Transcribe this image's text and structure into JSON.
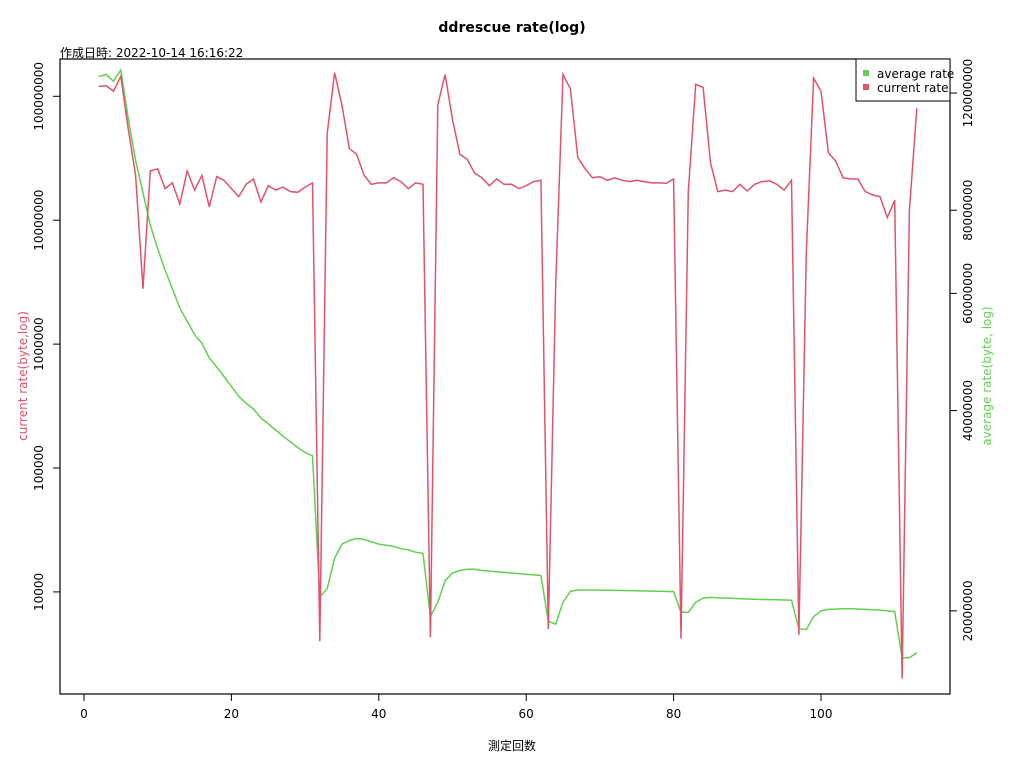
{
  "chart_data": {
    "type": "line",
    "title": "ddrescue rate(log)",
    "subtitle": "作成日時: 2022-10-14 16:16:22",
    "xlabel": "測定回数",
    "ylabel_left": "current rate(byte,log)",
    "ylabel_right": "average rate(byte, log)",
    "colors": {
      "current": "#DF536B",
      "average": "#61D04F"
    },
    "legend_position": "top-right",
    "grid": false,
    "xlim": [
      0,
      113
    ],
    "x_ticks": [
      0,
      20,
      40,
      60,
      80,
      100
    ],
    "y_left_log_range": [
      1500,
      200000000
    ],
    "y_left_ticks": [
      10000,
      100000,
      1000000,
      10000000,
      100000000
    ],
    "y_right_log_range": [
      15000000,
      135000000
    ],
    "y_right_ticks": [
      20000000,
      40000000,
      60000000,
      80000000,
      120000000
    ],
    "series": [
      {
        "name": "average rate",
        "axis": "right",
        "points": [
          [
            2,
            127000000
          ],
          [
            3,
            128000000
          ],
          [
            4,
            125000000
          ],
          [
            5,
            130000000
          ],
          [
            6,
            110000000
          ],
          [
            7,
            95000000
          ],
          [
            8,
            85000000
          ],
          [
            9,
            76000000
          ],
          [
            10,
            70000000
          ],
          [
            11,
            65000000
          ],
          [
            12,
            61000000
          ],
          [
            13,
            57000000
          ],
          [
            14,
            54500000
          ],
          [
            15,
            52000000
          ],
          [
            16,
            50500000
          ],
          [
            17,
            48000000
          ],
          [
            18,
            46500000
          ],
          [
            19,
            45000000
          ],
          [
            20,
            43500000
          ],
          [
            21,
            42000000
          ],
          [
            22,
            41000000
          ],
          [
            23,
            40200000
          ],
          [
            24,
            39000000
          ],
          [
            25,
            38200000
          ],
          [
            26,
            37400000
          ],
          [
            27,
            36600000
          ],
          [
            28,
            35900000
          ],
          [
            29,
            35200000
          ],
          [
            30,
            34600000
          ],
          [
            31,
            34200000
          ],
          [
            32,
            21000000
          ],
          [
            33,
            21600000
          ],
          [
            34,
            24000000
          ],
          [
            35,
            25200000
          ],
          [
            36,
            25500000
          ],
          [
            37,
            25700000
          ],
          [
            38,
            25600000
          ],
          [
            39,
            25400000
          ],
          [
            40,
            25200000
          ],
          [
            41,
            25100000
          ],
          [
            42,
            25000000
          ],
          [
            43,
            24800000
          ],
          [
            44,
            24700000
          ],
          [
            45,
            24500000
          ],
          [
            46,
            24400000
          ],
          [
            47,
            19600000
          ],
          [
            48,
            20600000
          ],
          [
            49,
            22200000
          ],
          [
            50,
            22800000
          ],
          [
            51,
            23000000
          ],
          [
            52,
            23100000
          ],
          [
            53,
            23100000
          ],
          [
            54,
            23000000
          ],
          [
            55,
            22950000
          ],
          [
            56,
            22900000
          ],
          [
            57,
            22850000
          ],
          [
            58,
            22800000
          ],
          [
            59,
            22750000
          ],
          [
            60,
            22700000
          ],
          [
            61,
            22650000
          ],
          [
            62,
            22600000
          ],
          [
            63,
            19300000
          ],
          [
            64,
            19100000
          ],
          [
            65,
            20600000
          ],
          [
            66,
            21400000
          ],
          [
            67,
            21500000
          ],
          [
            68,
            21500000
          ],
          [
            69,
            21500000
          ],
          [
            70,
            21490000
          ],
          [
            72,
            21470000
          ],
          [
            74,
            21450000
          ],
          [
            76,
            21420000
          ],
          [
            78,
            21400000
          ],
          [
            80,
            21380000
          ],
          [
            81,
            19900000
          ],
          [
            82,
            19900000
          ],
          [
            83,
            20600000
          ],
          [
            84,
            20900000
          ],
          [
            85,
            20950000
          ],
          [
            86,
            20920000
          ],
          [
            88,
            20880000
          ],
          [
            90,
            20840000
          ],
          [
            92,
            20800000
          ],
          [
            94,
            20780000
          ],
          [
            96,
            20750000
          ],
          [
            97,
            18800000
          ],
          [
            98,
            18750000
          ],
          [
            99,
            19600000
          ],
          [
            100,
            20000000
          ],
          [
            101,
            20100000
          ],
          [
            102,
            20120000
          ],
          [
            103,
            20140000
          ],
          [
            104,
            20150000
          ],
          [
            105,
            20130000
          ],
          [
            106,
            20100000
          ],
          [
            108,
            20050000
          ],
          [
            110,
            19950000
          ],
          [
            111,
            17000000
          ],
          [
            112,
            17000000
          ],
          [
            113,
            17300000
          ]
        ]
      },
      {
        "name": "current rate",
        "axis": "left",
        "points": [
          [
            2,
            120000000
          ],
          [
            3,
            122000000
          ],
          [
            4,
            110000000
          ],
          [
            5,
            145000000
          ],
          [
            6,
            55000000
          ],
          [
            7,
            23000000
          ],
          [
            8,
            2800000
          ],
          [
            9,
            25000000
          ],
          [
            10,
            26000000
          ],
          [
            11,
            18000000
          ],
          [
            12,
            20000000
          ],
          [
            13,
            13500000
          ],
          [
            14,
            25000000
          ],
          [
            15,
            17500000
          ],
          [
            16,
            23000000
          ],
          [
            17,
            12800000
          ],
          [
            18,
            22500000
          ],
          [
            19,
            21000000
          ],
          [
            20,
            18000000
          ],
          [
            21,
            15500000
          ],
          [
            22,
            19500000
          ],
          [
            23,
            21500000
          ],
          [
            24,
            14000000
          ],
          [
            25,
            19000000
          ],
          [
            26,
            17500000
          ],
          [
            27,
            18500000
          ],
          [
            28,
            17000000
          ],
          [
            29,
            16800000
          ],
          [
            30,
            18500000
          ],
          [
            31,
            20000000
          ],
          [
            32,
            4000
          ],
          [
            33,
            50000000
          ],
          [
            34,
            155000000
          ],
          [
            35,
            85000000
          ],
          [
            36,
            38000000
          ],
          [
            37,
            34000000
          ],
          [
            38,
            23000000
          ],
          [
            39,
            19500000
          ],
          [
            40,
            20000000
          ],
          [
            41,
            20000000
          ],
          [
            42,
            22000000
          ],
          [
            43,
            20500000
          ],
          [
            44,
            18000000
          ],
          [
            45,
            20000000
          ],
          [
            46,
            19500000
          ],
          [
            47,
            4300
          ],
          [
            48,
            85000000
          ],
          [
            49,
            150000000
          ],
          [
            50,
            65000000
          ],
          [
            51,
            34000000
          ],
          [
            52,
            31000000
          ],
          [
            53,
            24000000
          ],
          [
            54,
            22000000
          ],
          [
            55,
            19000000
          ],
          [
            56,
            21500000
          ],
          [
            57,
            19500000
          ],
          [
            58,
            19500000
          ],
          [
            59,
            18000000
          ],
          [
            60,
            19000000
          ],
          [
            61,
            20500000
          ],
          [
            62,
            21000000
          ],
          [
            63,
            5000
          ],
          [
            64,
            3000000
          ],
          [
            65,
            150000000
          ],
          [
            66,
            115000000
          ],
          [
            67,
            32000000
          ],
          [
            68,
            26000000
          ],
          [
            69,
            22000000
          ],
          [
            70,
            22500000
          ],
          [
            71,
            21000000
          ],
          [
            72,
            22000000
          ],
          [
            73,
            21000000
          ],
          [
            74,
            20500000
          ],
          [
            75,
            21000000
          ],
          [
            76,
            20500000
          ],
          [
            77,
            20000000
          ],
          [
            78,
            20000000
          ],
          [
            79,
            19800000
          ],
          [
            80,
            21500000
          ],
          [
            81,
            4200
          ],
          [
            82,
            17000000
          ],
          [
            83,
            125000000
          ],
          [
            84,
            118000000
          ],
          [
            85,
            29000000
          ],
          [
            86,
            17000000
          ],
          [
            87,
            17500000
          ],
          [
            88,
            17000000
          ],
          [
            89,
            19500000
          ],
          [
            90,
            17200000
          ],
          [
            91,
            19500000
          ],
          [
            92,
            20500000
          ],
          [
            93,
            20800000
          ],
          [
            94,
            19500000
          ],
          [
            95,
            17500000
          ],
          [
            96,
            21000000
          ],
          [
            97,
            4500
          ],
          [
            98,
            5500000
          ],
          [
            99,
            140000000
          ],
          [
            100,
            110000000
          ],
          [
            101,
            35000000
          ],
          [
            102,
            30000000
          ],
          [
            103,
            22000000
          ],
          [
            104,
            21500000
          ],
          [
            105,
            21500000
          ],
          [
            106,
            17000000
          ],
          [
            107,
            16000000
          ],
          [
            108,
            15500000
          ],
          [
            109,
            10500000
          ],
          [
            110,
            14500000
          ],
          [
            111,
            2000
          ],
          [
            112,
            12000000
          ],
          [
            113,
            80000000
          ]
        ]
      }
    ]
  }
}
